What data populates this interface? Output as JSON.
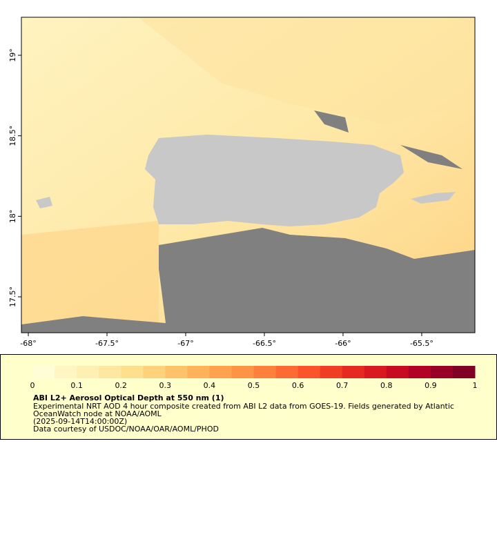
{
  "map": {
    "xlim": [
      -68.044,
      -65.162
    ],
    "ylim": [
      17.277,
      19.236
    ],
    "xticks": [
      {
        "value": -68,
        "label": "-68°"
      },
      {
        "value": -67.5,
        "label": "-67.5°"
      },
      {
        "value": -67,
        "label": "-67°"
      },
      {
        "value": -66.5,
        "label": "-66.5°"
      },
      {
        "value": -66,
        "label": "-66°"
      },
      {
        "value": -65.5,
        "label": "-65.5°"
      }
    ],
    "yticks": [
      {
        "value": 17.5,
        "label": "17.5°"
      },
      {
        "value": 18,
        "label": "18°"
      },
      {
        "value": 18.5,
        "label": "18.5°"
      },
      {
        "value": 19,
        "label": "19°"
      }
    ]
  },
  "colorbar": {
    "range": [
      0,
      1
    ],
    "ticks": [
      0,
      0.1,
      0.2,
      0.3,
      0.4,
      0.5,
      0.6,
      0.7,
      0.8,
      0.9,
      1
    ],
    "colors": [
      "#fffdd8",
      "#fff6c4",
      "#feefb2",
      "#fee7a0",
      "#fedf8e",
      "#fed27c",
      "#fec36a",
      "#feb35a",
      "#fea24f",
      "#fd9345",
      "#fd813d",
      "#fc6b34",
      "#fa542c",
      "#f03e25",
      "#e52a21",
      "#d81a20",
      "#c70c22",
      "#b10326",
      "#990026",
      "#800026"
    ]
  },
  "caption": {
    "title": "ABI L2+ Aerosol Optical Depth at 550 nm (1)",
    "lines": [
      "Experimental NRT AOD 4 hour composite created from ABI L2 data from GOES-19. Fields generated by Atlantic",
      "OceanWatch node at NOAA/AOML",
      "(2025-09-14T14:00:00Z)",
      "Data courtesy of USDOC/NOAA/OAR/AOML/PHOD"
    ]
  }
}
